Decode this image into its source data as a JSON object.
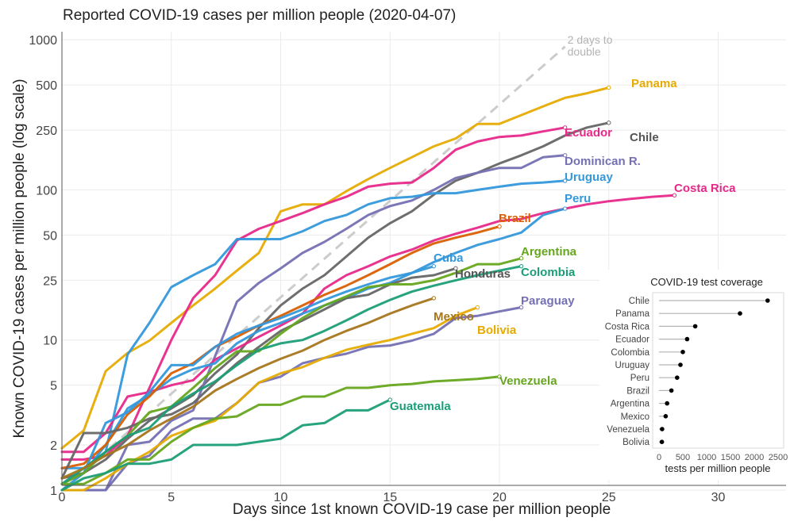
{
  "chart_data": {
    "type": "line",
    "title": "Reported COVID-19 cases per million people (2020-04-07)",
    "xlabel": "Days since 1st known COVID-19 case per million people",
    "ylabel": "Known COVID-19 cases per million people (log scale)",
    "yscale": "log",
    "xlim": [
      0,
      32.5
    ],
    "ylim": [
      1,
      1200
    ],
    "xticks": [
      0,
      5,
      10,
      15,
      20,
      25,
      30
    ],
    "yticks": [
      1,
      2,
      5,
      10,
      25,
      50,
      100,
      250,
      500,
      1000
    ],
    "grid": true,
    "legend": "direct-labels",
    "reference_line": {
      "label_line1": "2 days to",
      "label_line2": "double",
      "color": "#cccccc",
      "start": [
        0,
        1
      ],
      "end": [
        23,
        900
      ]
    },
    "series": [
      {
        "name": "Panama",
        "color": "#E6AB02",
        "values": [
          1.9,
          2.5,
          6.2,
          8.2,
          9.9,
          13,
          17,
          22,
          29,
          38,
          72,
          80,
          80,
          98,
          118,
          140,
          165,
          195,
          220,
          275,
          275,
          315,
          360,
          410,
          440,
          480
        ]
      },
      {
        "name": "Chile",
        "color": "#666666",
        "values": [
          1.2,
          1.3,
          1.6,
          2.2,
          2.9,
          3.5,
          4.3,
          6,
          8,
          12,
          17,
          22,
          27,
          36,
          48,
          60,
          72,
          93,
          115,
          130,
          150,
          170,
          195,
          230,
          260,
          280
        ]
      },
      {
        "name": "Ecuador",
        "color": "#E7298A",
        "values": [
          1.6,
          1.6,
          1.7,
          2.3,
          4.8,
          10,
          19,
          27,
          46,
          55,
          62,
          70,
          80,
          90,
          105,
          110,
          112,
          140,
          185,
          210,
          225,
          230,
          245,
          260
        ]
      },
      {
        "name": "Dominican R.",
        "color": "#7570B3",
        "values": [
          1.0,
          1.0,
          1.0,
          2.0,
          2.1,
          2.9,
          3.4,
          7.8,
          18,
          24,
          30,
          38,
          45,
          55,
          68,
          78,
          85,
          100,
          120,
          130,
          140,
          140,
          165,
          170
        ]
      },
      {
        "name": "Uruguay",
        "color": "#3498DB",
        "values": [
          1.4,
          1.4,
          1.8,
          8.0,
          13.0,
          22.5,
          27,
          32,
          47,
          47,
          47,
          53,
          62,
          68,
          80,
          88,
          90,
          95,
          95,
          100,
          105,
          110,
          112,
          115
        ]
      },
      {
        "name": "Costa Rica",
        "color": "#E7298A",
        "values": [
          1.8,
          1.8,
          2.4,
          4.2,
          4.5,
          5.0,
          5.4,
          7.4,
          8.8,
          10.5,
          12.5,
          15,
          22,
          27,
          31,
          36,
          40,
          46,
          51,
          56,
          62,
          64,
          70,
          75,
          80,
          84,
          87,
          90,
          92
        ]
      },
      {
        "name": "Peru",
        "color": "#3498DB",
        "values": [
          1.1,
          1.3,
          2.0,
          3.5,
          4.3,
          5.5,
          6.4,
          7.0,
          9.5,
          11.5,
          13,
          15,
          17,
          19,
          22,
          24,
          28,
          33,
          38,
          43,
          47,
          52,
          68,
          75
        ]
      },
      {
        "name": "Brazil",
        "color": "#D95F02",
        "values": [
          1.4,
          1.5,
          2.0,
          3.2,
          4.2,
          6.0,
          7.0,
          9.0,
          10.5,
          12.5,
          14.5,
          17,
          20,
          23,
          27,
          32,
          38,
          44,
          48,
          52,
          57
        ]
      },
      {
        "name": "Cuba",
        "color": "#3498DB",
        "values": [
          1.0,
          1.3,
          2.8,
          3.3,
          4.5,
          6.8,
          6.8,
          9,
          11,
          12.5,
          14,
          16,
          18.5,
          21,
          23.5,
          26,
          28,
          31
        ]
      },
      {
        "name": "Honduras",
        "color": "#666666",
        "values": [
          1.2,
          2.4,
          2.4,
          2.6,
          3.0,
          3.2,
          3.8,
          5.2,
          7,
          9,
          11.5,
          13.5,
          16,
          19,
          20,
          23.5,
          26,
          27,
          30
        ]
      },
      {
        "name": "Argentina",
        "color": "#66A61E",
        "values": [
          1.1,
          1.3,
          1.8,
          2.3,
          3.3,
          3.6,
          4.8,
          6.5,
          8.4,
          8.4,
          11,
          14,
          17,
          19.5,
          22.5,
          23.5,
          23.5,
          25,
          28,
          32,
          32,
          35
        ]
      },
      {
        "name": "Colombia",
        "color": "#1B9E77",
        "values": [
          1.1,
          1.4,
          1.8,
          2.3,
          2.6,
          3.6,
          4.4,
          5.3,
          6.8,
          8.6,
          9.5,
          10,
          11.5,
          13.5,
          16,
          18.5,
          21,
          23,
          25,
          27,
          29,
          31
        ]
      },
      {
        "name": "Paraguay",
        "color": "#7570B3",
        "values": [
          1.0,
          1.0,
          1.0,
          1.5,
          1.7,
          2.5,
          3.0,
          3.0,
          3.8,
          5.2,
          5.7,
          7.0,
          7.6,
          8.1,
          9,
          9.2,
          9.9,
          11,
          14,
          14.5,
          15.5,
          16.5
        ]
      },
      {
        "name": "Mexico",
        "color": "#A6761D",
        "values": [
          1.2,
          1.4,
          1.7,
          2.0,
          2.5,
          3.0,
          3.6,
          4.6,
          5.5,
          6.5,
          7.5,
          8.5,
          10,
          11.5,
          13,
          15,
          17,
          19
        ]
      },
      {
        "name": "Bolivia",
        "color": "#E6AB02",
        "values": [
          1.0,
          1.0,
          1.2,
          1.5,
          1.8,
          2.3,
          2.6,
          2.9,
          3.8,
          5.2,
          6.0,
          6.6,
          7.6,
          8.6,
          9.3,
          10,
          11,
          12,
          14.5,
          16.5
        ]
      },
      {
        "name": "Venezuela",
        "color": "#66A61E",
        "values": [
          1.1,
          1.1,
          1.3,
          1.6,
          1.6,
          2.1,
          2.6,
          3.0,
          3.1,
          3.7,
          3.7,
          4.2,
          4.2,
          4.8,
          4.8,
          5.0,
          5.1,
          5.3,
          5.4,
          5.5,
          5.7
        ]
      },
      {
        "name": "Guatemala",
        "color": "#1B9E77",
        "values": [
          1.0,
          1.2,
          1.3,
          1.5,
          1.5,
          1.6,
          2.0,
          2.0,
          2.0,
          2.1,
          2.2,
          2.7,
          2.8,
          3.4,
          3.4,
          4.0
        ]
      }
    ],
    "inset": {
      "type": "lollipop",
      "title": "COVID-19 test coverage",
      "xlabel": "tests per million people",
      "xlim": [
        0,
        2600
      ],
      "xticks": [
        0,
        500,
        1000,
        1500,
        2000,
        2500
      ],
      "categories": [
        "Chile",
        "Panama",
        "Costa Rica",
        "Ecuador",
        "Colombia",
        "Uruguay",
        "Peru",
        "Brazil",
        "Argentina",
        "Mexico",
        "Venezuela",
        "Bolivia"
      ],
      "values": [
        2280,
        1700,
        760,
        590,
        500,
        450,
        380,
        260,
        170,
        140,
        65,
        60
      ]
    }
  }
}
